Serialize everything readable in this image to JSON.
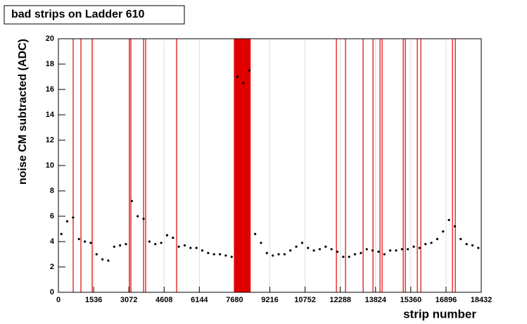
{
  "chart_data": {
    "type": "scatter",
    "title": "bad strips on Ladder 610",
    "xlabel": "strip number",
    "ylabel": "noise CM subtracted (ADC)",
    "xlim": [
      0,
      18432
    ],
    "xticks": [
      0,
      1536,
      3072,
      4608,
      6144,
      7680,
      9216,
      10752,
      12288,
      13824,
      15360,
      16896,
      18432
    ],
    "ylim": [
      0,
      20
    ],
    "yticks": [
      0,
      2,
      4,
      6,
      8,
      10,
      12,
      14,
      16,
      18,
      20
    ],
    "series": [
      {
        "color": "#000000",
        "x": [
          128,
          384,
          640,
          896,
          1152,
          1408,
          1664,
          1920,
          2176,
          2432,
          2688,
          2944,
          3200,
          3456,
          3712,
          3968,
          4224,
          4480,
          4736,
          4992,
          5248,
          5504,
          5760,
          6016,
          6272,
          6528,
          6784,
          7040,
          7296,
          7552,
          7808,
          8064,
          8320,
          8576,
          8832,
          9088,
          9344,
          9600,
          9856,
          10112,
          10368,
          10624,
          10880,
          11136,
          11392,
          11648,
          11904,
          12160,
          12416,
          12672,
          12928,
          13184,
          13440,
          13696,
          13952,
          14208,
          14464,
          14720,
          14976,
          15232,
          15488,
          15744,
          16000,
          16256,
          16512,
          16768,
          17024,
          17280,
          17536,
          17792,
          18048,
          18304
        ],
        "values": [
          4.6,
          5.6,
          5.9,
          4.2,
          4.0,
          3.9,
          3.0,
          2.6,
          2.5,
          3.6,
          3.7,
          3.8,
          7.2,
          6.0,
          5.8,
          4.0,
          3.8,
          3.9,
          4.5,
          4.3,
          3.6,
          3.7,
          3.5,
          3.5,
          3.3,
          3.1,
          3.0,
          3.0,
          2.9,
          2.8,
          17.0,
          16.5,
          17.5,
          4.6,
          3.9,
          3.1,
          2.9,
          3.0,
          3.0,
          3.3,
          3.6,
          3.9,
          3.5,
          3.3,
          3.4,
          3.6,
          3.4,
          3.2,
          2.8,
          2.8,
          3.0,
          3.1,
          3.4,
          3.3,
          3.2,
          3.0,
          3.3,
          3.3,
          3.4,
          3.4,
          3.6,
          3.5,
          3.8,
          3.9,
          4.2,
          4.8,
          5.7,
          5.2,
          4.2,
          3.8,
          3.7,
          3.5
        ]
      }
    ],
    "bad_strips": {
      "color": "#e00000",
      "x": [
        644,
        982,
        1472,
        3098,
        3160,
        3712,
        3804,
        5153,
        12117,
        12515,
        13282,
        13712,
        14018,
        14110,
        15031,
        15123,
        15644,
        15798,
        17178,
        17301
      ],
      "range": [
        7650,
        8380
      ]
    }
  }
}
